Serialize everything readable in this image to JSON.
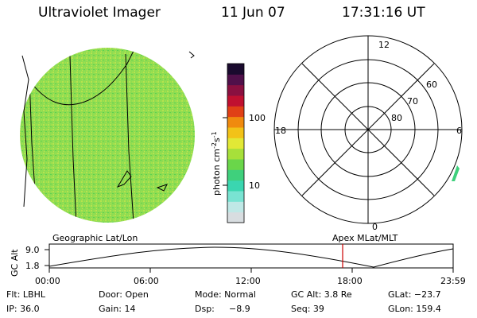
{
  "header": {
    "instrument": "Ultraviolet Imager",
    "date": "11 Jun 07",
    "time": "17:31:16 UT"
  },
  "colorbar": {
    "unit_label": "photon cm",
    "unit_sup1": "-2",
    "unit_s": "s",
    "unit_sup2": "-1",
    "ticks": [
      "100",
      "10"
    ],
    "colors": [
      "#d8dde0",
      "#bfe8e6",
      "#79e3d2",
      "#3ad6b0",
      "#3fd07c",
      "#6ad64a",
      "#a7e03a",
      "#e2e836",
      "#f2c218",
      "#f08a0e",
      "#e04016",
      "#c01030",
      "#8a1040",
      "#50104a",
      "#1a0a2e"
    ]
  },
  "polar_plot": {
    "lat_labels": [
      "60",
      "70",
      "80"
    ],
    "mlt_labels": {
      "top": "12",
      "left": "18",
      "right": "6",
      "bottom": "0"
    }
  },
  "orbit_plot": {
    "left_title": "Geographic Lat/Lon",
    "right_title": "Apex MLat/MLT",
    "y_axis_label": "GC Alt",
    "y_ticks": [
      "9.0",
      "1.8"
    ],
    "x_ticks": [
      "00:00",
      "06:00",
      "12:00",
      "18:00",
      "23:59"
    ],
    "current_time_marker_color": "#cc0000"
  },
  "status": {
    "row1": {
      "filter": "Flt: LBHL",
      "door": "Door: Open",
      "mode": "Mode: Normal",
      "gc_alt": "GC Alt: 3.8 Re",
      "glat": "GLat: −23.7"
    },
    "row2": {
      "ip": "IP: 36.0",
      "gain": "Gain: 14",
      "dsp_label": "Dsp:",
      "dsp_value": "−8.9",
      "seq": "Seq: 39",
      "glon": "GLon: 159.4"
    }
  },
  "colors": {
    "disk_fill": "#8edc52",
    "disk_speckle_light": "#b7e34e",
    "disk_speckle_dark": "#5fd24e",
    "edge_glow": "#3ad6b0"
  }
}
